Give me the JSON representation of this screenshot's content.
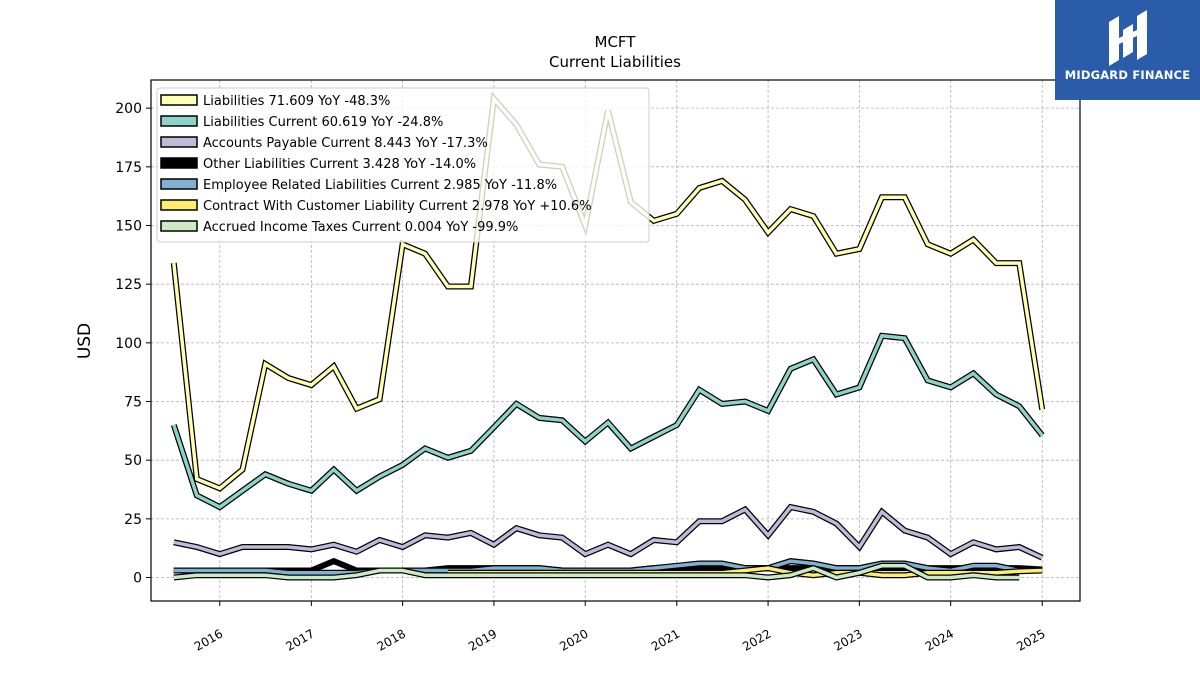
{
  "chart_data": {
    "type": "line",
    "title": "MCFT",
    "subtitle": "Current  Liabilities",
    "xlabel": "",
    "ylabel": "USD",
    "xlim": [
      "2015-04-01",
      "2025-06-01"
    ],
    "ylim": [
      -10,
      212
    ],
    "yticks": [
      0,
      25,
      50,
      75,
      100,
      125,
      150,
      175,
      200
    ],
    "xticks": [
      "2016",
      "2017",
      "2018",
      "2019",
      "2020",
      "2021",
      "2022",
      "2023",
      "2024",
      "2025"
    ],
    "grid": true,
    "legend_position": "top-left",
    "series": [
      {
        "name": "Liabilities  71.609 YoY -48.3%",
        "color": "#ffffb3",
        "points": [
          [
            "2015-07-01",
            134
          ],
          [
            "2015-10-01",
            42
          ],
          [
            "2016-01-01",
            38
          ],
          [
            "2016-04-01",
            46
          ],
          [
            "2016-07-01",
            91
          ],
          [
            "2016-10-01",
            85
          ],
          [
            "2017-01-01",
            82
          ],
          [
            "2017-04-01",
            90
          ],
          [
            "2017-07-01",
            72
          ],
          [
            "2017-10-01",
            76
          ],
          [
            "2018-01-01",
            142
          ],
          [
            "2018-04-01",
            138
          ],
          [
            "2018-07-01",
            124
          ],
          [
            "2018-10-01",
            124
          ],
          [
            "2019-01-01",
            204
          ],
          [
            "2019-04-01",
            193
          ],
          [
            "2019-07-01",
            176
          ],
          [
            "2019-10-01",
            175
          ],
          [
            "2020-01-01",
            150
          ],
          [
            "2020-04-01",
            199
          ],
          [
            "2020-07-01",
            160
          ],
          [
            "2020-10-01",
            152
          ],
          [
            "2021-01-01",
            155
          ],
          [
            "2021-04-01",
            166
          ],
          [
            "2021-07-01",
            169
          ],
          [
            "2021-10-01",
            161
          ],
          [
            "2022-01-01",
            147
          ],
          [
            "2022-04-01",
            157
          ],
          [
            "2022-07-01",
            154
          ],
          [
            "2022-10-01",
            138
          ],
          [
            "2023-01-01",
            140
          ],
          [
            "2023-04-01",
            162
          ],
          [
            "2023-07-01",
            162
          ],
          [
            "2023-10-01",
            142
          ],
          [
            "2024-01-01",
            138
          ],
          [
            "2024-04-01",
            144
          ],
          [
            "2024-07-01",
            134
          ],
          [
            "2024-10-01",
            134
          ],
          [
            "2025-01-01",
            71.609
          ]
        ]
      },
      {
        "name": "Liabilities Current  60.619 YoY -24.8%",
        "color": "#8dd3c7",
        "points": [
          [
            "2015-07-01",
            65
          ],
          [
            "2015-10-01",
            35
          ],
          [
            "2016-01-01",
            30
          ],
          [
            "2016-04-01",
            37
          ],
          [
            "2016-07-01",
            44
          ],
          [
            "2016-10-01",
            40
          ],
          [
            "2017-01-01",
            37
          ],
          [
            "2017-04-01",
            46
          ],
          [
            "2017-07-01",
            37
          ],
          [
            "2017-10-01",
            43
          ],
          [
            "2018-01-01",
            48
          ],
          [
            "2018-04-01",
            55
          ],
          [
            "2018-07-01",
            51
          ],
          [
            "2018-10-01",
            54
          ],
          [
            "2019-01-01",
            64
          ],
          [
            "2019-04-01",
            74
          ],
          [
            "2019-07-01",
            68
          ],
          [
            "2019-10-01",
            67
          ],
          [
            "2020-01-01",
            58
          ],
          [
            "2020-04-01",
            66
          ],
          [
            "2020-07-01",
            55
          ],
          [
            "2020-10-01",
            60
          ],
          [
            "2021-01-01",
            65
          ],
          [
            "2021-04-01",
            80
          ],
          [
            "2021-07-01",
            74
          ],
          [
            "2021-10-01",
            75
          ],
          [
            "2022-01-01",
            71
          ],
          [
            "2022-04-01",
            89
          ],
          [
            "2022-07-01",
            93
          ],
          [
            "2022-10-01",
            78
          ],
          [
            "2023-01-01",
            81
          ],
          [
            "2023-04-01",
            103
          ],
          [
            "2023-07-01",
            102
          ],
          [
            "2023-10-01",
            84
          ],
          [
            "2024-01-01",
            81
          ],
          [
            "2024-04-01",
            87
          ],
          [
            "2024-07-01",
            78
          ],
          [
            "2024-10-01",
            73
          ],
          [
            "2025-01-01",
            60.619
          ]
        ]
      },
      {
        "name": "Accounts Payable Current  8.443 YoY -17.3%",
        "color": "#bebada",
        "points": [
          [
            "2015-07-01",
            15
          ],
          [
            "2015-10-01",
            13
          ],
          [
            "2016-01-01",
            10
          ],
          [
            "2016-04-01",
            13
          ],
          [
            "2016-07-01",
            13
          ],
          [
            "2016-10-01",
            13
          ],
          [
            "2017-01-01",
            12
          ],
          [
            "2017-04-01",
            14
          ],
          [
            "2017-07-01",
            11
          ],
          [
            "2017-10-01",
            16
          ],
          [
            "2018-01-01",
            13
          ],
          [
            "2018-04-01",
            18
          ],
          [
            "2018-07-01",
            17
          ],
          [
            "2018-10-01",
            19
          ],
          [
            "2019-01-01",
            14
          ],
          [
            "2019-04-01",
            21
          ],
          [
            "2019-07-01",
            18
          ],
          [
            "2019-10-01",
            17
          ],
          [
            "2020-01-01",
            10
          ],
          [
            "2020-04-01",
            14
          ],
          [
            "2020-07-01",
            10
          ],
          [
            "2020-10-01",
            16
          ],
          [
            "2021-01-01",
            15
          ],
          [
            "2021-04-01",
            24
          ],
          [
            "2021-07-01",
            24
          ],
          [
            "2021-10-01",
            29
          ],
          [
            "2022-01-01",
            18
          ],
          [
            "2022-04-01",
            30
          ],
          [
            "2022-07-01",
            28
          ],
          [
            "2022-10-01",
            23
          ],
          [
            "2023-01-01",
            13
          ],
          [
            "2023-04-01",
            28
          ],
          [
            "2023-07-01",
            20
          ],
          [
            "2023-10-01",
            17
          ],
          [
            "2024-01-01",
            10
          ],
          [
            "2024-04-01",
            15
          ],
          [
            "2024-07-01",
            12
          ],
          [
            "2024-10-01",
            13
          ],
          [
            "2025-01-01",
            8.443
          ]
        ]
      },
      {
        "name": "Other Liabilities Current  3.428 YoY -14.0%",
        "color": "#000000",
        "points": [
          [
            "2015-07-01",
            3
          ],
          [
            "2015-10-01",
            3
          ],
          [
            "2016-01-01",
            3
          ],
          [
            "2016-04-01",
            3
          ],
          [
            "2016-07-01",
            3
          ],
          [
            "2016-10-01",
            3
          ],
          [
            "2017-01-01",
            3
          ],
          [
            "2017-04-01",
            7
          ],
          [
            "2017-07-01",
            3
          ],
          [
            "2017-10-01",
            3
          ],
          [
            "2018-01-01",
            3
          ],
          [
            "2018-04-01",
            3
          ],
          [
            "2018-07-01",
            4
          ],
          [
            "2018-10-01",
            4
          ],
          [
            "2019-01-01",
            4
          ],
          [
            "2019-04-01",
            4
          ],
          [
            "2019-07-01",
            4
          ],
          [
            "2019-10-01",
            3
          ],
          [
            "2020-01-01",
            3
          ],
          [
            "2020-04-01",
            3
          ],
          [
            "2020-07-01",
            3
          ],
          [
            "2020-10-01",
            4
          ],
          [
            "2021-01-01",
            4
          ],
          [
            "2021-04-01",
            4
          ],
          [
            "2021-07-01",
            4
          ],
          [
            "2021-10-01",
            4
          ],
          [
            "2022-01-01",
            4
          ],
          [
            "2022-04-01",
            4
          ],
          [
            "2022-07-01",
            4
          ],
          [
            "2022-10-01",
            4
          ],
          [
            "2023-01-01",
            4
          ],
          [
            "2023-04-01",
            4
          ],
          [
            "2023-07-01",
            4
          ],
          [
            "2023-10-01",
            4
          ],
          [
            "2024-01-01",
            4
          ],
          [
            "2024-04-01",
            4
          ],
          [
            "2024-07-01",
            4
          ],
          [
            "2024-10-01",
            4
          ],
          [
            "2025-01-01",
            3.428
          ]
        ]
      },
      {
        "name": "Employee Related Liabilities Current  2.985 YoY -11.8%",
        "color": "#80b1d3",
        "points": [
          [
            "2015-07-01",
            3
          ],
          [
            "2015-10-01",
            3
          ],
          [
            "2016-01-01",
            3
          ],
          [
            "2016-04-01",
            3
          ],
          [
            "2016-07-01",
            3
          ],
          [
            "2016-10-01",
            2
          ],
          [
            "2017-01-01",
            2
          ],
          [
            "2017-04-01",
            2
          ],
          [
            "2017-07-01",
            2
          ],
          [
            "2017-10-01",
            3
          ],
          [
            "2018-01-01",
            3
          ],
          [
            "2018-04-01",
            3
          ],
          [
            "2018-07-01",
            3
          ],
          [
            "2018-10-01",
            3
          ],
          [
            "2019-01-01",
            4
          ],
          [
            "2019-04-01",
            4
          ],
          [
            "2019-07-01",
            4
          ],
          [
            "2019-10-01",
            3
          ],
          [
            "2020-01-01",
            3
          ],
          [
            "2020-04-01",
            3
          ],
          [
            "2020-07-01",
            3
          ],
          [
            "2020-10-01",
            4
          ],
          [
            "2021-01-01",
            5
          ],
          [
            "2021-04-01",
            6
          ],
          [
            "2021-07-01",
            6
          ],
          [
            "2021-10-01",
            4
          ],
          [
            "2022-01-01",
            4
          ],
          [
            "2022-04-01",
            7
          ],
          [
            "2022-07-01",
            6
          ],
          [
            "2022-10-01",
            4
          ],
          [
            "2023-01-01",
            4
          ],
          [
            "2023-04-01",
            6
          ],
          [
            "2023-07-01",
            6
          ],
          [
            "2023-10-01",
            4
          ],
          [
            "2024-01-01",
            3
          ],
          [
            "2024-04-01",
            5
          ],
          [
            "2024-07-01",
            5
          ],
          [
            "2024-10-01",
            3
          ],
          [
            "2025-01-01",
            2.985
          ]
        ]
      },
      {
        "name": "Contract With Customer Liability Current  2.978 YoY +10.6%",
        "color": "#ffed6f",
        "points": [
          [
            "2018-07-01",
            2
          ],
          [
            "2018-10-01",
            2
          ],
          [
            "2019-01-01",
            2
          ],
          [
            "2019-04-01",
            2
          ],
          [
            "2019-07-01",
            2
          ],
          [
            "2019-10-01",
            2
          ],
          [
            "2020-01-01",
            2
          ],
          [
            "2020-04-01",
            2
          ],
          [
            "2020-07-01",
            2
          ],
          [
            "2020-10-01",
            2
          ],
          [
            "2021-01-01",
            2
          ],
          [
            "2021-04-01",
            2
          ],
          [
            "2021-07-01",
            2
          ],
          [
            "2021-10-01",
            3
          ],
          [
            "2022-01-01",
            4
          ],
          [
            "2022-04-01",
            2
          ],
          [
            "2022-07-01",
            1
          ],
          [
            "2022-10-01",
            2
          ],
          [
            "2023-01-01",
            2
          ],
          [
            "2023-04-01",
            1
          ],
          [
            "2023-07-01",
            1
          ],
          [
            "2023-10-01",
            2
          ],
          [
            "2024-01-01",
            2
          ],
          [
            "2024-04-01",
            2
          ],
          [
            "2024-07-01",
            2
          ],
          [
            "2024-10-01",
            2.7
          ],
          [
            "2025-01-01",
            2.978
          ]
        ]
      },
      {
        "name": "Accrued Income Taxes Current  0.004 YoY -99.9%",
        "color": "#ccebc5",
        "points": [
          [
            "2015-07-01",
            0
          ],
          [
            "2015-10-01",
            1
          ],
          [
            "2016-01-01",
            1
          ],
          [
            "2016-04-01",
            1
          ],
          [
            "2016-07-01",
            1
          ],
          [
            "2016-10-01",
            0
          ],
          [
            "2017-01-01",
            0
          ],
          [
            "2017-04-01",
            0
          ],
          [
            "2017-07-01",
            1
          ],
          [
            "2017-10-01",
            3
          ],
          [
            "2018-01-01",
            3
          ],
          [
            "2018-04-01",
            1
          ],
          [
            "2018-07-01",
            1
          ],
          [
            "2018-10-01",
            1
          ],
          [
            "2019-01-01",
            1
          ],
          [
            "2019-04-01",
            1
          ],
          [
            "2019-07-01",
            1
          ],
          [
            "2019-10-01",
            1
          ],
          [
            "2020-01-01",
            1
          ],
          [
            "2020-04-01",
            1
          ],
          [
            "2020-07-01",
            1
          ],
          [
            "2020-10-01",
            1
          ],
          [
            "2021-01-01",
            1
          ],
          [
            "2021-04-01",
            1
          ],
          [
            "2021-07-01",
            1
          ],
          [
            "2021-10-01",
            1
          ],
          [
            "2022-01-01",
            0
          ],
          [
            "2022-04-01",
            1
          ],
          [
            "2022-07-01",
            4
          ],
          [
            "2022-10-01",
            0
          ],
          [
            "2023-01-01",
            2
          ],
          [
            "2023-04-01",
            5
          ],
          [
            "2023-07-01",
            5
          ],
          [
            "2023-10-01",
            0
          ],
          [
            "2024-01-01",
            0
          ],
          [
            "2024-04-01",
            1
          ],
          [
            "2024-07-01",
            0
          ],
          [
            "2024-10-01",
            0.004
          ]
        ]
      }
    ]
  },
  "logo": {
    "brand_name": "MIDGARD FINANCE",
    "background": "#2a5caa"
  }
}
